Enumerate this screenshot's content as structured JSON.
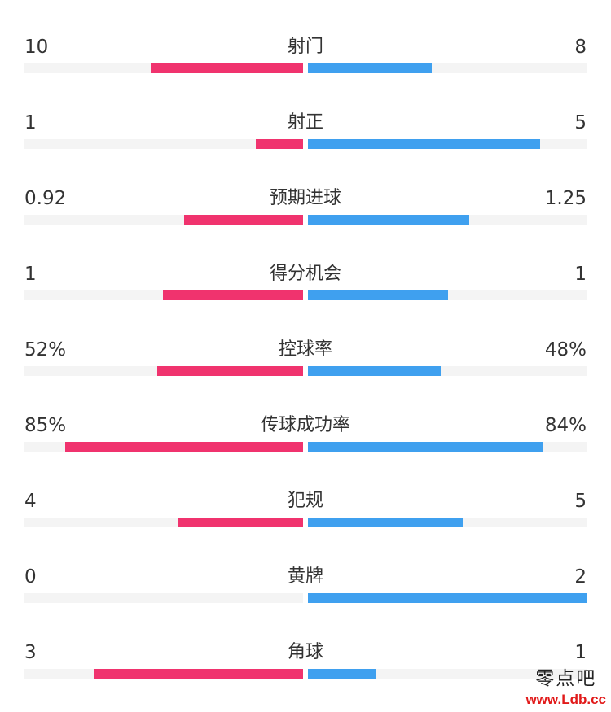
{
  "stats": [
    {
      "label": "射门",
      "home": "10",
      "away": "8",
      "home_pct": 54.7,
      "away_pct": 44.5
    },
    {
      "label": "射正",
      "home": "1",
      "away": "5",
      "home_pct": 17.0,
      "away_pct": 83.3
    },
    {
      "label": "预期进球",
      "home": "0.92",
      "away": "1.25",
      "home_pct": 42.7,
      "away_pct": 57.9
    },
    {
      "label": "得分机会",
      "home": "1",
      "away": "1",
      "home_pct": 50.3,
      "away_pct": 50.3
    },
    {
      "label": "控球率",
      "home": "52%",
      "away": "48%",
      "home_pct": 52.3,
      "away_pct": 47.7
    },
    {
      "label": "传球成功率",
      "home": "85%",
      "away": "84%",
      "home_pct": 85.4,
      "away_pct": 84.2
    },
    {
      "label": "犯规",
      "home": "4",
      "away": "5",
      "home_pct": 44.7,
      "away_pct": 55.6
    },
    {
      "label": "黄牌",
      "home": "0",
      "away": "2",
      "home_pct": 0,
      "away_pct": 100
    },
    {
      "label": "角球",
      "home": "3",
      "away": "1",
      "home_pct": 75.1,
      "away_pct": 24.6
    }
  ],
  "colors": {
    "home_bar": "#f0336e",
    "away_bar": "#3fa0ef",
    "track": "#f4f4f4",
    "text": "#333333"
  },
  "watermark": {
    "site_name": "零点吧",
    "url": "www.Ldb.cc"
  }
}
